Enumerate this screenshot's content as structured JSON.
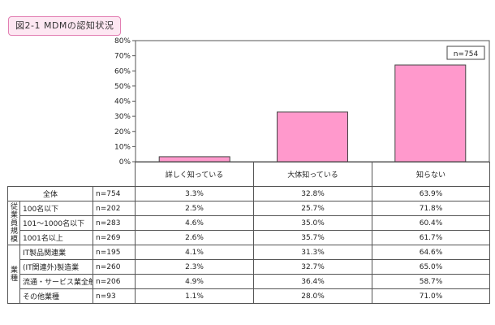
{
  "title": "図2-1 MDMの認知状況",
  "n_label": "n=754",
  "chart_data": {
    "type": "bar",
    "categories": [
      "詳しく知っている",
      "大体知っている",
      "知らない"
    ],
    "values": [
      3.3,
      32.8,
      63.9
    ],
    "ylim": [
      0,
      80
    ],
    "yticks": [
      "0%",
      "10%",
      "20%",
      "30%",
      "40%",
      "50%",
      "60%",
      "70%",
      "80%"
    ],
    "bar_color": "#ff99cc",
    "grid": false,
    "table": {
      "columns": [
        "詳しく知っている",
        "大体知っている",
        "知らない"
      ],
      "groups": [
        {
          "label": "",
          "rows": [
            {
              "label": "全体",
              "n": "n=754",
              "values": [
                "3.3%",
                "32.8%",
                "63.9%"
              ]
            }
          ]
        },
        {
          "label": "従業員規模",
          "rows": [
            {
              "label": "100名以下",
              "n": "n=202",
              "values": [
                "2.5%",
                "25.7%",
                "71.8%"
              ]
            },
            {
              "label": "101～1000名以下",
              "n": "n=283",
              "values": [
                "4.6%",
                "35.0%",
                "60.4%"
              ]
            },
            {
              "label": "1001名以上",
              "n": "n=269",
              "values": [
                "2.6%",
                "35.7%",
                "61.7%"
              ]
            }
          ]
        },
        {
          "label": "業種",
          "rows": [
            {
              "label": "IT製品関連業",
              "n": "n=195",
              "values": [
                "4.1%",
                "31.3%",
                "64.6%"
              ]
            },
            {
              "label": "(IT関連外)製造業",
              "n": "n=260",
              "values": [
                "2.3%",
                "32.7%",
                "65.0%"
              ]
            },
            {
              "label": "流通・サービス業全般",
              "n": "n=206",
              "values": [
                "4.9%",
                "36.4%",
                "58.7%"
              ]
            },
            {
              "label": "その他業種",
              "n": "n=93",
              "values": [
                "1.1%",
                "28.0%",
                "71.0%"
              ]
            }
          ]
        }
      ]
    }
  }
}
